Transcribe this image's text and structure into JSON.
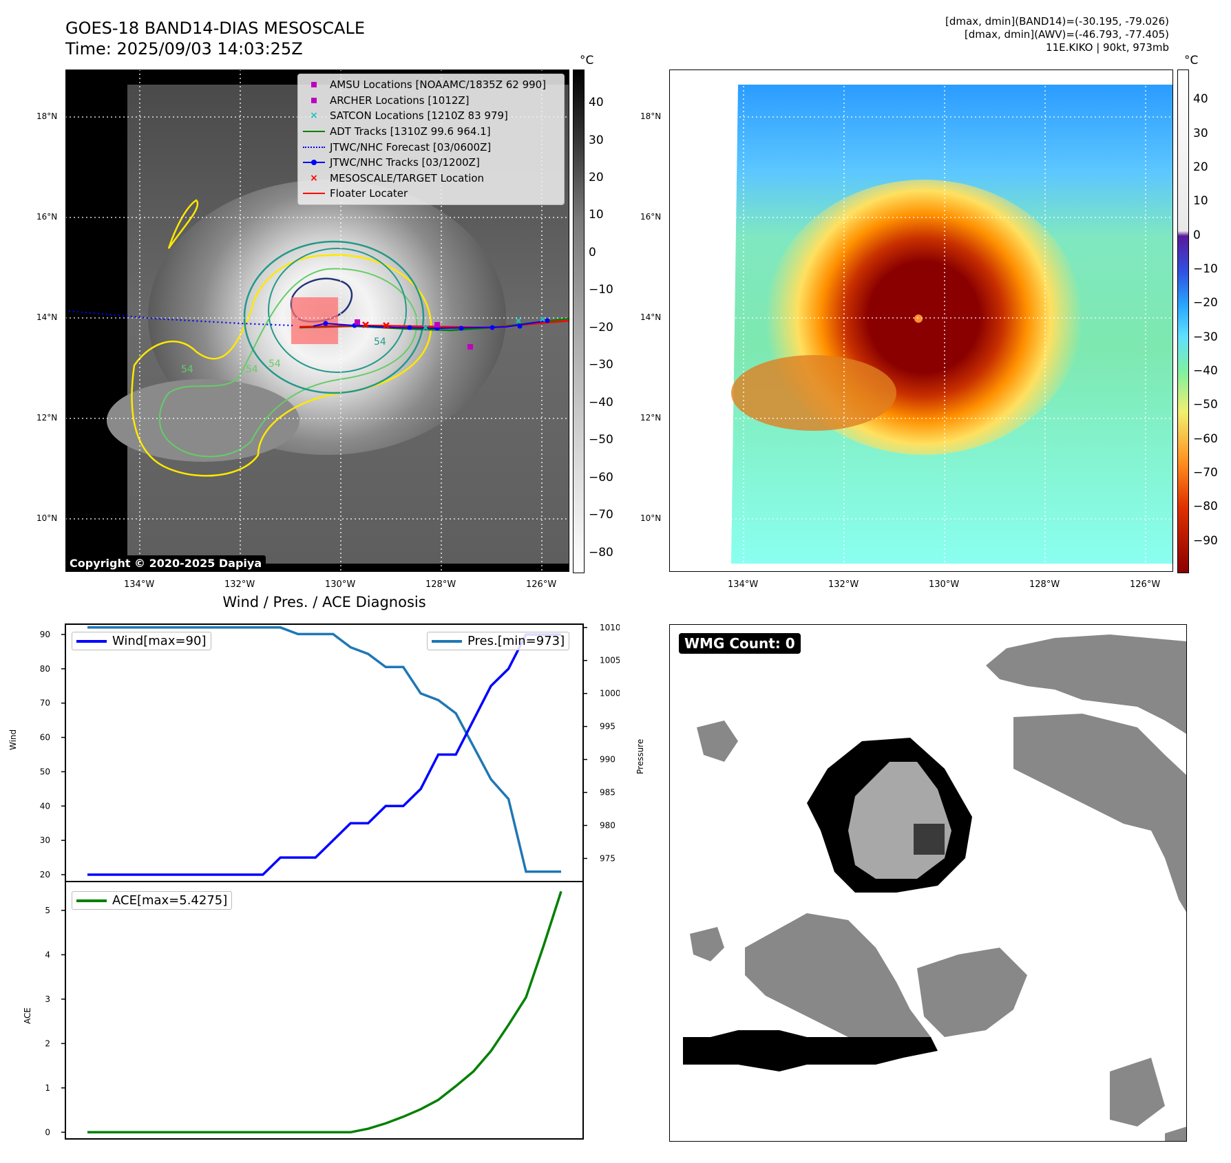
{
  "header": {
    "title_line1": "GOES-18 BAND14-DIAS MESOSCALE",
    "title_line2": "Time: 2025/09/03 14:03:25Z",
    "info_line1": "[dmax, dmin](BAND14)=(-30.195, -79.026)",
    "info_line2": "[dmax, dmin](AWV)=(-46.793, -77.405)",
    "info_line3": "11E.KIKO | 90kt, 973mb"
  },
  "map_panel": {
    "lat_labels": [
      "18°N",
      "16°N",
      "14°N",
      "12°N",
      "10°N"
    ],
    "lon_labels": [
      "134°W",
      "132°W",
      "130°W",
      "128°W",
      "126°W"
    ],
    "copyright": "Copyright © 2020-2025 Dapiya",
    "contour_label_a": "54",
    "contour_label_b": "54",
    "contour_label_c": "54",
    "contour_label_d": "54",
    "legend": [
      {
        "label": "AMSU Locations [NOAAMC/1835Z 62 990]",
        "symbol": "square",
        "color": "#c000c0"
      },
      {
        "label": "ARCHER Locations [1012Z]",
        "symbol": "square",
        "color": "#c000c0"
      },
      {
        "label": "SATCON Locations [1210Z 83 979]",
        "symbol": "x",
        "color": "#20c0c0"
      },
      {
        "label": "ADT Tracks [1310Z 99.6 964.1]",
        "symbol": "line",
        "color": "#008000"
      },
      {
        "label": "JTWC/NHC Forecast [03/0600Z]",
        "symbol": "dotted",
        "color": "#0000ff"
      },
      {
        "label": "JTWC/NHC Tracks [03/1200Z]",
        "symbol": "line-dot",
        "color": "#0000ff"
      },
      {
        "label": "MESOSCALE/TARGET Location",
        "symbol": "x",
        "color": "#ff0000"
      },
      {
        "label": "Floater Locater",
        "symbol": "line",
        "color": "#ff0000"
      }
    ],
    "colorbar": {
      "unit": "°C",
      "ticks": [
        "40",
        "30",
        "20",
        "10",
        "0",
        "−10",
        "−20",
        "−30",
        "−40",
        "−50",
        "−60",
        "−70",
        "−80"
      ],
      "range": [
        -85,
        49
      ]
    }
  },
  "awv_panel": {
    "lat_labels": [
      "18°N",
      "16°N",
      "14°N",
      "12°N",
      "10°N"
    ],
    "lon_labels": [
      "134°W",
      "132°W",
      "130°W",
      "128°W",
      "126°W"
    ],
    "colorbar": {
      "unit": "°C",
      "ticks": [
        "40",
        "30",
        "20",
        "10",
        "0",
        "−10",
        "−20",
        "−30",
        "−40",
        "−50",
        "−60",
        "−70",
        "−80",
        "−90"
      ],
      "range": [
        -99,
        49
      ]
    }
  },
  "wmg_panel": {
    "badge": "WMG Count: 0"
  },
  "colors": {
    "wind": "#0000ff",
    "pressure": "#1f77b4",
    "ace": "#008000",
    "contour_yellow": "#ffe800",
    "contour_green": "#66cc66",
    "contour_teal": "#229988",
    "contour_navy": "#223377"
  },
  "chart_data": [
    {
      "type": "line",
      "title": "Wind / Pres. / ACE Diagnosis",
      "ylabel": "Wind",
      "y2label": "Pressure",
      "ylim": [
        18,
        93
      ],
      "y2lim": [
        971.5,
        1010.5
      ],
      "yticks": [
        "90",
        "80",
        "70",
        "60",
        "50",
        "40",
        "30",
        "20"
      ],
      "y2ticks": [
        "1010",
        "1005",
        "1000",
        "995",
        "990",
        "985",
        "980",
        "975"
      ],
      "series": [
        {
          "name": "Wind[max=90]",
          "axis": "left",
          "values": [
            20,
            20,
            20,
            20,
            20,
            20,
            20,
            20,
            20,
            20,
            20,
            25,
            25,
            25,
            30,
            35,
            35,
            40,
            40,
            45,
            55,
            55,
            65,
            75,
            80,
            90,
            90,
            90
          ]
        },
        {
          "name": "Pres.[min=973]",
          "axis": "right",
          "values": [
            1010,
            1010,
            1010,
            1010,
            1010,
            1010,
            1010,
            1010,
            1010,
            1010,
            1010,
            1010,
            1009,
            1009,
            1009,
            1007,
            1006,
            1004,
            1004,
            1000,
            999,
            997,
            992,
            987,
            984,
            973,
            973,
            973
          ]
        }
      ]
    },
    {
      "type": "line",
      "ylabel": "ACE",
      "ylim": [
        -0.15,
        5.65
      ],
      "yticks": [
        "0",
        "1",
        "2",
        "3",
        "4",
        "5"
      ],
      "series": [
        {
          "name": "ACE[max=5.4275]",
          "values": [
            0,
            0,
            0,
            0,
            0,
            0,
            0,
            0,
            0,
            0,
            0,
            0,
            0,
            0,
            0,
            0,
            0.08,
            0.2,
            0.35,
            0.52,
            0.73,
            1.04,
            1.37,
            1.83,
            2.42,
            3.04,
            4.2,
            5.4275
          ]
        }
      ]
    }
  ]
}
